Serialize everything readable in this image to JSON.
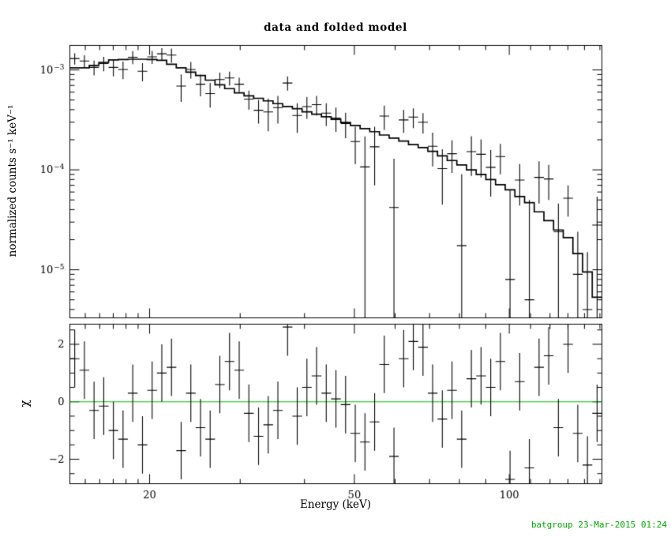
{
  "footer": {
    "timestamp": "batgroup 23-Mar-2015 01:24"
  },
  "colors": {
    "foreground": "#000000",
    "background": "#ffffff",
    "green": "#00aa00",
    "zero_line": "#00c000"
  },
  "chart_data": {
    "type": "scatter",
    "title": "data and folded model",
    "xlabel": "Energy (keV)",
    "ylabel_top": "normalized counts s⁻¹ keV⁻¹",
    "ylabel_bottom": "χ",
    "xscale": "log",
    "xlim": [
      14.0,
      151.37
    ],
    "xticks": {
      "major": [
        20,
        50,
        100
      ],
      "labels": [
        "20",
        "50",
        "100"
      ],
      "minor": [
        15,
        16,
        17,
        18,
        19,
        30,
        40,
        60,
        70,
        80,
        90,
        110,
        120,
        130,
        140,
        150
      ]
    },
    "top_panel": {
      "yscale": "log",
      "ylim": [
        3.3e-06,
        0.00176
      ],
      "ytick_decades": [
        -3,
        -4,
        -5
      ],
      "ytick_exponents": [
        "−3",
        "−4",
        "−5"
      ]
    },
    "bottom_panel": {
      "yscale": "linear",
      "ylim": [
        -2.85,
        2.7
      ],
      "yticks_major": [
        -2,
        0,
        2
      ],
      "ytick_labels": [
        "−2",
        "0",
        "2"
      ],
      "yticks_minor": [
        -2.5,
        -1.5,
        -1,
        -0.5,
        0.5,
        1,
        1.5,
        2.5
      ],
      "zero_line": 0
    },
    "series": [
      {
        "name": "data",
        "style": "error-bar-crosses"
      },
      {
        "name": "folded model",
        "style": "step-histogram"
      },
      {
        "name": "chi residuals",
        "style": "error-bar-crosses"
      }
    ],
    "bin_edges": [
      14.0,
      14.62,
      15.27,
      15.94,
      16.65,
      17.38,
      18.15,
      18.96,
      19.8,
      20.67,
      21.59,
      22.54,
      23.54,
      24.58,
      25.67,
      26.8,
      27.99,
      29.23,
      30.52,
      31.87,
      33.28,
      34.75,
      36.29,
      37.89,
      39.57,
      41.32,
      43.15,
      45.06,
      47.05,
      49.13,
      51.3,
      53.57,
      55.94,
      58.42,
      61.0,
      63.7,
      66.52,
      69.46,
      72.53,
      75.74,
      79.09,
      82.59,
      86.24,
      90.06,
      94.04,
      98.2,
      102.54,
      107.08,
      111.81,
      116.76,
      121.92,
      127.31,
      132.94,
      138.82,
      144.96,
      151.37
    ],
    "model_y": [
      0.00105,
      0.00105,
      0.00111,
      0.00119,
      0.00126,
      0.00127,
      0.00128,
      0.00128,
      0.00127,
      0.00125,
      0.00114,
      0.00105,
      0.00095,
      0.00088,
      0.00079,
      0.00071,
      0.00065,
      0.00059,
      0.00055,
      0.00052,
      0.00049,
      0.00046,
      0.00043,
      0.00041,
      0.00038,
      0.00036,
      0.00034,
      0.00032,
      0.000298,
      0.000278,
      0.000259,
      0.000241,
      0.000223,
      0.000208,
      0.000194,
      0.000179,
      0.000167,
      0.000153,
      0.000138,
      0.000124,
      0.000112,
      0.0001,
      9e-05,
      8e-05,
      7.1e-05,
      6.3e-05,
      5.4e-05,
      4.7e-05,
      3.8e-05,
      3.1e-05,
      2.5e-05,
      2.1e-05,
      1.45e-05,
      9.5e-06,
      5.3e-06
    ],
    "data_y": [
      0.0013,
      0.00123,
      0.00106,
      0.00116,
      0.00106,
      0.00101,
      0.00134,
      0.00097,
      0.00135,
      0.00145,
      0.00141,
      0.00069,
      0.00101,
      0.00072,
      0.00058,
      0.0008,
      0.00083,
      0.00072,
      0.00051,
      0.000395,
      0.00038,
      0.00042,
      0.00074,
      0.00035,
      0.00043,
      0.00045,
      0.00037,
      0.00033,
      0.00029,
      0.000192,
      0.000107,
      0.00017,
      0.000345,
      4.2e-05,
      0.000316,
      0.000337,
      0.0003,
      0.000172,
      0.000103,
      0.000145,
      1.74e-05,
      0.000152,
      0.000143,
      0.000106,
      0.000136,
      8e-06,
      7.9e-05,
      5e-06,
      8.4e-05,
      8.1e-05,
      2.4e-05,
      5.2e-05,
      9e-06,
      4e-06,
      2.8e-05
    ],
    "data_err": [
      0.00017,
      0.00017,
      0.00018,
      0.00019,
      0.0002,
      0.0002,
      0.0002,
      0.0002,
      0.0002,
      0.0002,
      0.00023,
      0.00021,
      0.00019,
      0.000176,
      0.00016,
      0.00014,
      0.00013,
      0.00012,
      0.00011,
      0.000104,
      0.000137,
      0.00013,
      0.00012,
      0.000115,
      0.000106,
      0.0001,
      9.5e-05,
      9e-05,
      8.3e-05,
      7.8e-05,
      0.000109,
      0.0001,
      9.4e-05,
      8.7e-05,
      8.1e-05,
      7.5e-05,
      7e-05,
      6.4e-05,
      5.8e-05,
      5.2e-05,
      7.3e-05,
      6.5e-05,
      5.9e-05,
      5.2e-05,
      4.6e-05,
      5.5e-05,
      3.5e-05,
      4.5e-05,
      3.8e-05,
      3.1e-05,
      2.2e-05,
      1.8e-05,
      1.5e-05,
      1.1e-05,
      2.6e-05
    ],
    "chi_y": [
      1.5,
      1.1,
      -0.3,
      -0.15,
      -1.0,
      -1.3,
      0.3,
      -1.5,
      0.4,
      1.0,
      1.2,
      -1.7,
      0.3,
      -0.9,
      -1.3,
      0.6,
      1.4,
      1.1,
      -0.4,
      -1.2,
      -0.8,
      -0.3,
      2.6,
      -0.5,
      0.5,
      0.9,
      0.3,
      0.1,
      -0.1,
      -1.1,
      -1.4,
      -0.7,
      1.3,
      -1.9,
      1.5,
      2.1,
      1.9,
      0.3,
      -0.6,
      0.4,
      -1.3,
      0.8,
      0.9,
      0.5,
      1.4,
      -2.7,
      0.7,
      -2.3,
      1.2,
      1.6,
      -0.9,
      2.0,
      -1.1,
      -2.2,
      -0.4
    ],
    "chi_err": 1.0
  }
}
